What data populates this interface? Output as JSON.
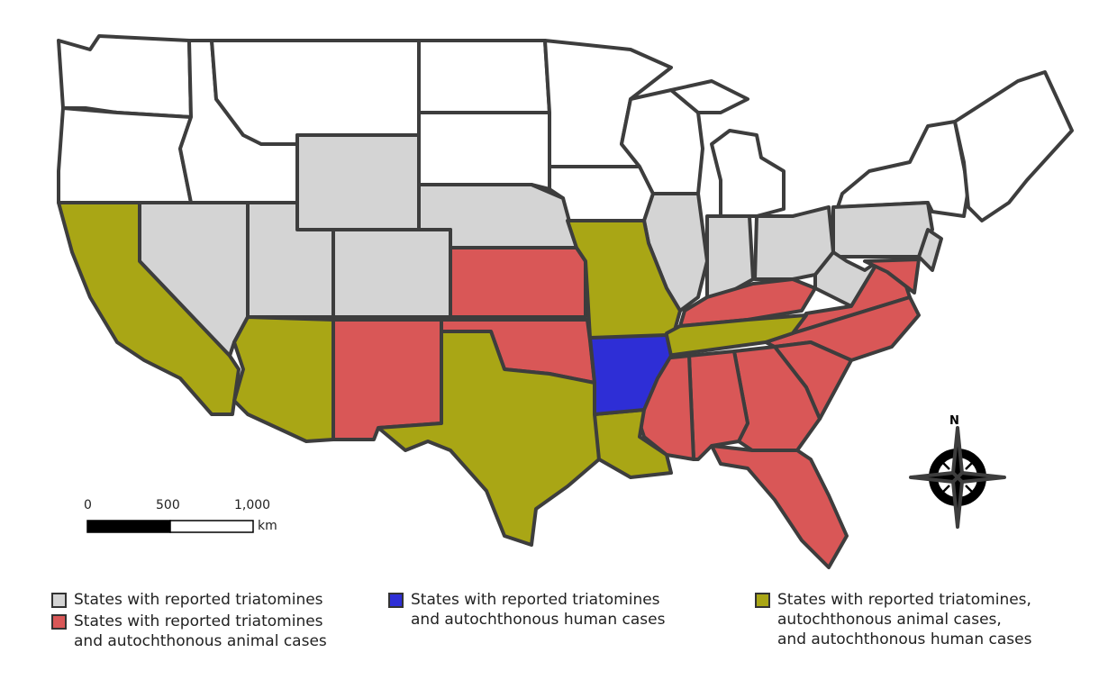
{
  "map": {
    "stroke_color": "#3d3d3d",
    "colors": {
      "none": "#ffffff",
      "triatomines": "#d4d4d4",
      "animal": "#d95757",
      "human": "#2e2ed6",
      "animal_human": "#a9a615"
    }
  },
  "scale_bar": {
    "ticks": [
      "0",
      "500",
      "1,000"
    ],
    "unit": "km"
  },
  "compass": {
    "north_label": "N",
    "icon": "compass-rose-icon"
  },
  "legend": [
    {
      "category": "triatomines",
      "text": "States with reported triatomines"
    },
    {
      "category": "animal",
      "text": "States with reported triatomines\nand autochthonous animal cases"
    },
    {
      "category": "human",
      "text": "States with reported triatomines\nand autochthonous human cases"
    },
    {
      "category": "animal_human",
      "text": "States with reported triatomines,\nautochthonous animal cases,\nand autochthonous human cases"
    }
  ]
}
